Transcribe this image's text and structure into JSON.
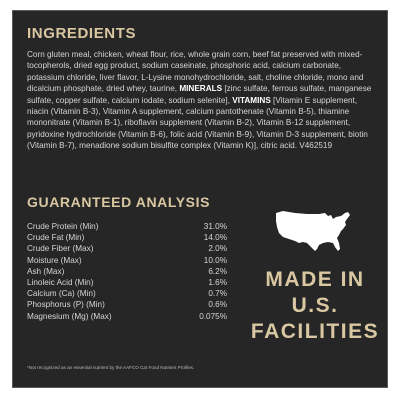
{
  "ingredients": {
    "heading": "INGREDIENTS",
    "part1": "Corn gluten meal, chicken, wheat flour, rice, whole grain corn, beef fat preserved with mixed-tocopherols, dried egg product, sodium caseinate, phosphoric acid, calcium carbonate, potassium chloride, liver flavor, L-Lysine monohydrochloride, salt, choline chloride, mono and dicalcium phosphate, dried whey, taurine, ",
    "minerals_label": "MINERALS",
    "minerals": " [zinc sulfate, ferrous sulfate, manganese sulfate, copper sulfate, calcium iodate, sodium selenite], ",
    "vitamins_label": "VITAMINS",
    "vitamins": " [Vitamin E supplement, niacin (Vitamin B-3), Vitamin A supplement, calcium pantothenate (Vitamin B-5), thiamine mononitrate (Vitamin B-1), riboflavin supplement (Vitamin B-2), Vitamin B-12 supplement, pyridoxine hydrochloride (Vitamin B-6), folic acid (Vitamin B-9), Vitamin D-3 supplement, biotin (Vitamin B-7), menadione sodium bisulfite complex (Vitamin K)], citric acid. V462519"
  },
  "analysis": {
    "heading": "GUARANTEED ANALYSIS",
    "rows": [
      {
        "name": "Crude Protein (Min)",
        "value": "31.0%"
      },
      {
        "name": "Crude Fat (Min)",
        "value": "14.0%"
      },
      {
        "name": "Crude Fiber (Max)",
        "value": "2.0%"
      },
      {
        "name": "Moisture (Max)",
        "value": "10.0%"
      },
      {
        "name": "Ash (Max)",
        "value": "6.2%"
      },
      {
        "name": "Linoleic Acid (Min)",
        "value": "1.6%"
      },
      {
        "name": "Calcium (Ca) (Min)",
        "value": "0.7%"
      },
      {
        "name": "Phosphorus (P) (Min)",
        "value": "0.6%"
      },
      {
        "name": "Magnesium (Mg) (Max)",
        "value": "0.075%"
      }
    ]
  },
  "badge": {
    "line1": "MADE IN",
    "line2": "U.S.",
    "line3": "FACILITIES",
    "icon": "usa-map-icon"
  },
  "footnote": "*Not recognized as an essential nutrient by the AAFCO Cat Food Nutrient Profiles.",
  "colors": {
    "panel_bg": "#262626",
    "heading_gold": "#d9c7a2",
    "body_text": "#d6d6d6"
  }
}
